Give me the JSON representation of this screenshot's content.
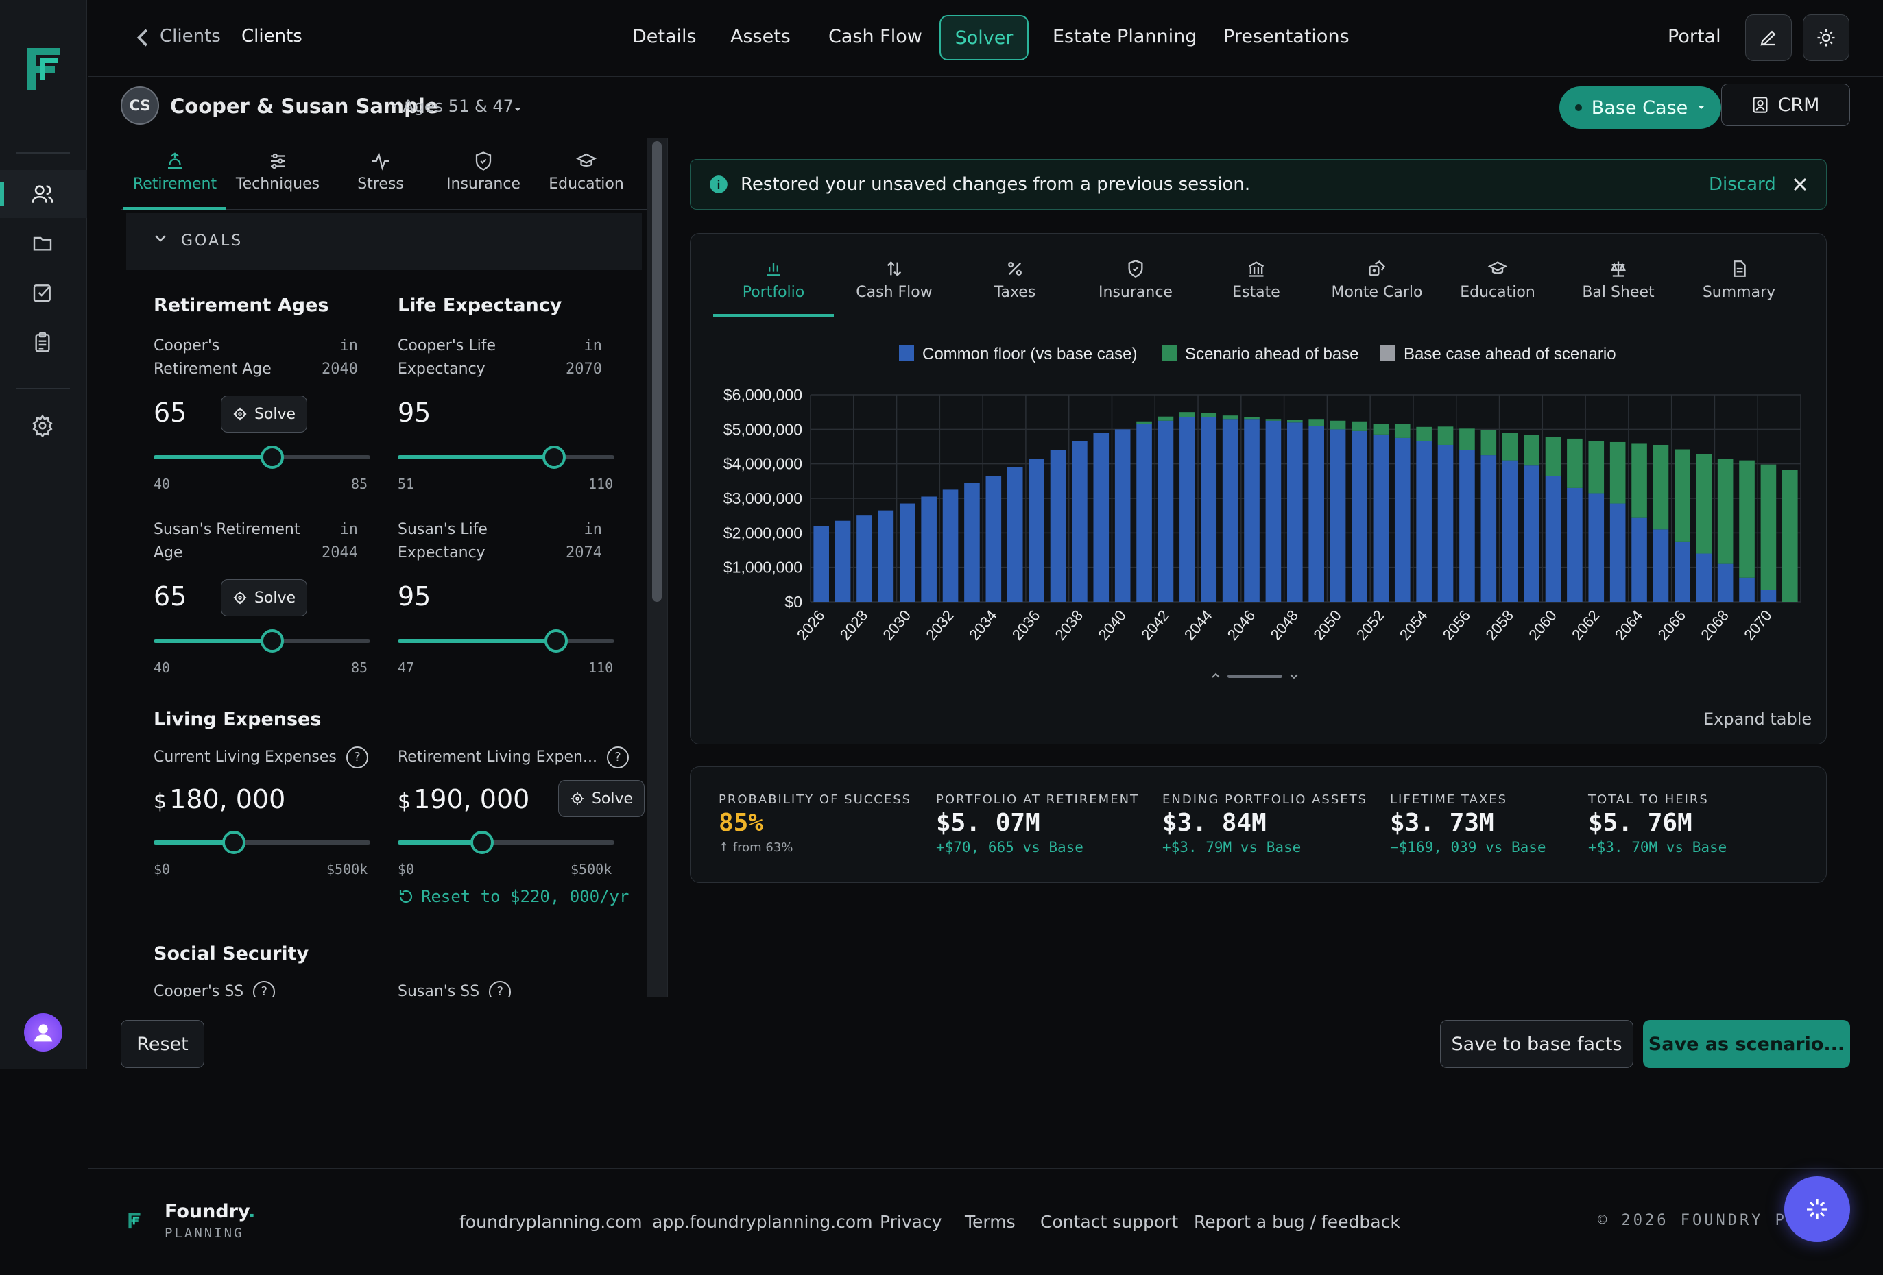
{
  "nav": {
    "back_crumb": "Clients",
    "current_crumb": "Clients",
    "tabs": [
      "Details",
      "Assets",
      "Cash Flow",
      "Solver",
      "Estate Planning",
      "Presentations"
    ],
    "active_tab": "Solver",
    "portal": "Portal"
  },
  "client": {
    "initials": "CS",
    "name": "Cooper & Susan Sample",
    "ages": "· Ages 51 & 47",
    "scenario": "Base Case",
    "crm": "CRM"
  },
  "left_tabs": [
    "Retirement",
    "Techniques",
    "Stress",
    "Insurance",
    "Education"
  ],
  "goals_label": "GOALS",
  "retirement_ages": {
    "title": "Retirement Ages",
    "cooper": {
      "label1": "Cooper's",
      "label2": "Retirement Age",
      "in": "in",
      "year": "2040",
      "value": "65",
      "min": "40",
      "max": "85",
      "level": 0.55
    },
    "susan": {
      "label1": "Susan's Retirement",
      "label2": "Age",
      "in": "in",
      "year": "2044",
      "value": "65",
      "min": "40",
      "max": "85",
      "level": 0.55
    }
  },
  "life_expectancy": {
    "title": "Life Expectancy",
    "cooper": {
      "label1": "Cooper's Life",
      "label2": "Expectancy",
      "in": "in",
      "year": "2070",
      "value": "95",
      "min": "51",
      "max": "110",
      "level": 0.73
    },
    "susan": {
      "label1": "Susan's Life",
      "label2": "Expectancy",
      "in": "in",
      "year": "2074",
      "value": "95",
      "min": "47",
      "max": "110",
      "level": 0.75
    }
  },
  "solve_label": "Solve",
  "living_expenses": {
    "title": "Living Expenses",
    "current": {
      "label": "Current Living Expenses",
      "currency": "$",
      "value": "180, 000",
      "min": "$0",
      "max": "$500k",
      "level": 0.37
    },
    "retirement": {
      "label": "Retirement Living Expen...",
      "currency": "$",
      "value": "190, 000",
      "min": "$0",
      "max": "$500k",
      "level": 0.39,
      "reset": "Reset to $220, 000/yr"
    }
  },
  "social_security": {
    "title": "Social Security",
    "cooper": "Cooper's SS",
    "susan": "Susan's SS"
  },
  "banner": {
    "text": "Restored your unsaved changes from a previous session.",
    "discard": "Discard"
  },
  "chart_tabs": [
    "Portfolio",
    "Cash Flow",
    "Taxes",
    "Insurance",
    "Estate",
    "Monte Carlo",
    "Education",
    "Bal Sheet",
    "Summary"
  ],
  "chart_data": {
    "type": "bar",
    "stacked": true,
    "legend": [
      "Common floor (vs base case)",
      "Scenario ahead of base",
      "Base case ahead of scenario"
    ],
    "legend_position": "top",
    "colors": {
      "floor": "#2f5fb5",
      "ahead": "#2e8b57",
      "behind": "#9a9da3"
    },
    "ylim": [
      0,
      6000000
    ],
    "y_ticks": [
      "$0",
      "$1,000,000",
      "$2,000,000",
      "$3,000,000",
      "$4,000,000",
      "$5,000,000",
      "$6,000,000"
    ],
    "x_ticks": [
      "2026",
      "2028",
      "2030",
      "2032",
      "2034",
      "2036",
      "2038",
      "2040",
      "2042",
      "2044",
      "2046",
      "2048",
      "2050",
      "2052",
      "2054",
      "2056",
      "2058",
      "2060",
      "2062",
      "2064",
      "2066",
      "2068",
      "2070"
    ],
    "grid": true,
    "categories": [
      2026,
      2027,
      2028,
      2029,
      2030,
      2031,
      2032,
      2033,
      2034,
      2035,
      2036,
      2037,
      2038,
      2039,
      2040,
      2041,
      2042,
      2043,
      2044,
      2045,
      2046,
      2047,
      2048,
      2049,
      2050,
      2051,
      2052,
      2053,
      2054,
      2055,
      2056,
      2057,
      2058,
      2059,
      2060,
      2061,
      2062,
      2063,
      2064,
      2065,
      2066,
      2067,
      2068,
      2069,
      2070,
      2071
    ],
    "series": [
      {
        "name": "Common floor (vs base case)",
        "values": [
          2200000,
          2350000,
          2500000,
          2650000,
          2850000,
          3050000,
          3250000,
          3450000,
          3650000,
          3900000,
          4150000,
          4400000,
          4650000,
          4900000,
          5000000,
          5150000,
          5250000,
          5350000,
          5350000,
          5300000,
          5300000,
          5250000,
          5200000,
          5100000,
          5000000,
          4950000,
          4850000,
          4750000,
          4650000,
          4550000,
          4400000,
          4250000,
          4100000,
          3950000,
          3650000,
          3300000,
          3150000,
          2850000,
          2450000,
          2100000,
          1750000,
          1400000,
          1100000,
          700000,
          350000,
          0
        ]
      },
      {
        "name": "Scenario ahead of base",
        "values": [
          0,
          0,
          0,
          0,
          0,
          0,
          0,
          0,
          0,
          0,
          0,
          0,
          0,
          0,
          0,
          80000,
          120000,
          150000,
          120000,
          100000,
          50000,
          50000,
          80000,
          200000,
          250000,
          280000,
          310000,
          400000,
          420000,
          530000,
          620000,
          720000,
          790000,
          880000,
          1130000,
          1430000,
          1510000,
          1780000,
          2150000,
          2450000,
          2670000,
          2880000,
          3050000,
          3400000,
          3630000,
          3820000
        ]
      }
    ]
  },
  "expand_table": "Expand table",
  "stats": [
    {
      "label": "PROBABILITY OF SUCCESS",
      "value": "85%",
      "delta": "↑ from 63%"
    },
    {
      "label": "PORTFOLIO AT RETIREMENT",
      "value": "$5. 07M",
      "delta": "+$70, 665 vs Base"
    },
    {
      "label": "ENDING PORTFOLIO ASSETS",
      "value": "$3. 84M",
      "delta": "+$3. 79M vs Base"
    },
    {
      "label": "LIFETIME TAXES",
      "value": "$3. 73M",
      "delta": "−$169, 039 vs Base"
    },
    {
      "label": "TOTAL TO HEIRS",
      "value": "$5. 76M",
      "delta": "+$3. 70M vs Base"
    }
  ],
  "actions": {
    "reset": "Reset",
    "save_base": "Save to base facts",
    "save_scenario": "Save as scenario..."
  },
  "footer": {
    "brand": "Foundry",
    "brand_sub": "PLANNING",
    "links": [
      "foundryplanning.com",
      "app.foundryplanning.com",
      "Privacy",
      "Terms",
      "Contact support",
      "Report a bug / feedback"
    ],
    "copyright": "© 2026 FOUNDRY PL"
  }
}
